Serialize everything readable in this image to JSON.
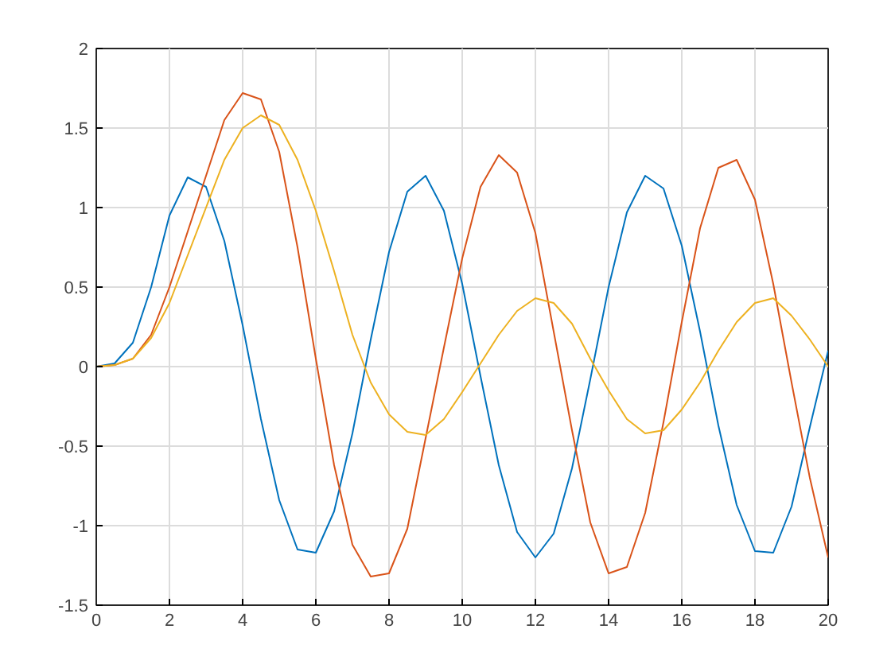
{
  "chart_data": {
    "type": "line",
    "x": [
      0,
      0.5,
      1,
      1.5,
      2,
      2.5,
      3,
      3.5,
      4,
      4.5,
      5,
      5.5,
      6,
      6.5,
      7,
      7.5,
      8,
      8.5,
      9,
      9.5,
      10,
      10.5,
      11,
      11.5,
      12,
      12.5,
      13,
      13.5,
      14,
      14.5,
      15,
      15.5,
      16,
      16.5,
      17,
      17.5,
      18,
      18.5,
      19,
      19.5,
      20
    ],
    "series": [
      {
        "color": "#0072bd",
        "values": [
          0,
          0.02,
          0.15,
          0.5,
          0.95,
          1.19,
          1.13,
          0.79,
          0.26,
          -0.33,
          -0.84,
          -1.15,
          -1.17,
          -0.91,
          -0.42,
          0.17,
          0.72,
          1.1,
          1.2,
          0.98,
          0.52,
          -0.06,
          -0.62,
          -1.04,
          -1.2,
          -1.05,
          -0.64,
          -0.08,
          0.5,
          0.97,
          1.2,
          1.12,
          0.76,
          0.22,
          -0.37,
          -0.87,
          -1.16,
          -1.17,
          -0.88,
          -0.38,
          0.1
        ]
      },
      {
        "color": "#d95319",
        "values": [
          0,
          0.01,
          0.05,
          0.2,
          0.5,
          0.85,
          1.2,
          1.55,
          1.72,
          1.68,
          1.35,
          0.75,
          0.05,
          -0.62,
          -1.12,
          -1.32,
          -1.3,
          -1.02,
          -0.45,
          0.12,
          0.68,
          1.13,
          1.33,
          1.22,
          0.84,
          0.22,
          -0.4,
          -0.98,
          -1.3,
          -1.26,
          -0.92,
          -0.35,
          0.28,
          0.87,
          1.25,
          1.3,
          1.05,
          0.52,
          -0.1,
          -0.7,
          -1.2
        ]
      },
      {
        "color": "#edb120",
        "values": [
          0,
          0.01,
          0.05,
          0.18,
          0.4,
          0.7,
          1.0,
          1.3,
          1.5,
          1.58,
          1.52,
          1.3,
          0.98,
          0.6,
          0.2,
          -0.1,
          -0.3,
          -0.41,
          -0.43,
          -0.33,
          -0.16,
          0.02,
          0.2,
          0.35,
          0.43,
          0.4,
          0.27,
          0.05,
          -0.15,
          -0.33,
          -0.42,
          -0.4,
          -0.27,
          -0.1,
          0.1,
          0.28,
          0.4,
          0.43,
          0.32,
          0.17,
          0.0
        ]
      }
    ],
    "xlim": [
      0,
      20
    ],
    "ylim": [
      -1.5,
      2
    ],
    "xticks": [
      0,
      2,
      4,
      6,
      8,
      10,
      12,
      14,
      16,
      18,
      20
    ],
    "yticks": [
      -1.5,
      -1,
      -0.5,
      0,
      0.5,
      1,
      1.5,
      2
    ],
    "grid": true
  }
}
